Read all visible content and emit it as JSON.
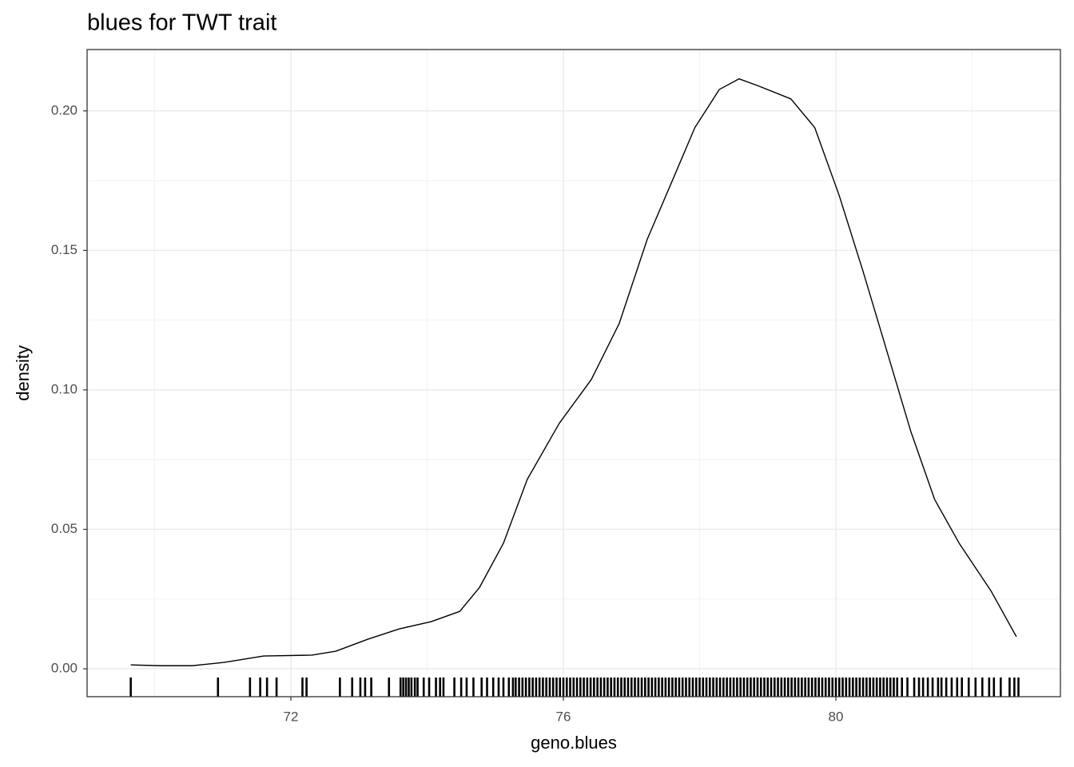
{
  "chart_data": {
    "type": "density",
    "title": "blues for TWT trait",
    "x_label": "geno.blues",
    "y_label": "density",
    "xlim": [
      69.009,
      83.296
    ],
    "ylim": [
      -0.01,
      0.222
    ],
    "xticks": [
      72,
      76,
      80
    ],
    "yticks": [
      {
        "value": 0,
        "label": "0.00"
      },
      {
        "value": 0.05,
        "label": "0.05"
      },
      {
        "value": 0.1,
        "label": "0.10"
      },
      {
        "value": 0.15,
        "label": "0.15"
      },
      {
        "value": 0.2,
        "label": "0.20"
      }
    ],
    "x_minor_grid": [
      70,
      74,
      78,
      82
    ],
    "y_minor_grid": [
      0.025,
      0.075,
      0.125,
      0.175
    ],
    "grid": true,
    "color": "#000000",
    "x": [
      69.65,
      70.08,
      70.55,
      71.02,
      71.6,
      72.31,
      72.66,
      73.13,
      73.59,
      74.06,
      74.48,
      74.77,
      75.12,
      75.47,
      75.94,
      76.41,
      76.82,
      77.23,
      77.58,
      77.93,
      78.29,
      78.58,
      78.87,
      79.34,
      79.69,
      80.05,
      80.4,
      80.75,
      81.1,
      81.45,
      81.81,
      82.28,
      82.65
    ],
    "values": [
      0.0014,
      0.0011,
      0.0011,
      0.0023,
      0.0046,
      0.0049,
      0.0063,
      0.0106,
      0.0143,
      0.0169,
      0.0206,
      0.0292,
      0.045,
      0.0679,
      0.088,
      0.1037,
      0.1238,
      0.1539,
      0.1739,
      0.194,
      0.2077,
      0.2115,
      0.2089,
      0.2043,
      0.194,
      0.1696,
      0.1424,
      0.1138,
      0.0851,
      0.0607,
      0.045,
      0.0278,
      0.0115
    ],
    "rug": [
      69.65,
      70.93,
      71.4,
      71.55,
      71.65,
      71.79,
      72.17,
      72.23,
      72.72,
      72.9,
      73.02,
      73.09,
      73.18,
      73.44,
      73.61,
      73.65,
      73.69,
      73.73,
      73.77,
      73.82,
      73.86,
      73.95,
      74.03,
      74.13,
      74.19,
      74.24,
      74.4,
      74.5,
      74.58,
      74.68,
      74.8,
      74.88,
      74.97,
      75.05,
      75.12,
      75.2,
      75.26,
      75.3,
      75.35,
      75.4,
      75.45,
      75.5,
      75.55,
      75.6,
      75.65,
      75.7,
      75.75,
      75.8,
      75.85,
      75.9,
      75.95,
      76,
      76.05,
      76.1,
      76.15,
      76.2,
      76.25,
      76.3,
      76.35,
      76.4,
      76.45,
      76.5,
      76.55,
      76.6,
      76.65,
      76.7,
      76.75,
      76.8,
      76.85,
      76.9,
      76.95,
      77,
      77.05,
      77.1,
      77.15,
      77.2,
      77.25,
      77.3,
      77.35,
      77.4,
      77.45,
      77.5,
      77.55,
      77.6,
      77.65,
      77.7,
      77.75,
      77.8,
      77.85,
      77.9,
      77.95,
      78,
      78.05,
      78.1,
      78.15,
      78.2,
      78.25,
      78.3,
      78.35,
      78.4,
      78.45,
      78.5,
      78.55,
      78.6,
      78.65,
      78.7,
      78.75,
      78.8,
      78.85,
      78.9,
      78.95,
      79,
      79.05,
      79.1,
      79.15,
      79.2,
      79.25,
      79.3,
      79.35,
      79.4,
      79.45,
      79.5,
      79.55,
      79.6,
      79.65,
      79.7,
      79.75,
      79.8,
      79.85,
      79.9,
      79.95,
      80,
      80.05,
      80.1,
      80.15,
      80.2,
      80.25,
      80.3,
      80.35,
      80.4,
      80.45,
      80.5,
      80.55,
      80.6,
      80.65,
      80.7,
      80.75,
      80.8,
      80.85,
      80.9,
      80.97,
      81.05,
      81.15,
      81.22,
      81.28,
      81.35,
      81.42,
      81.5,
      81.55,
      81.62,
      81.7,
      81.78,
      81.85,
      81.95,
      82.05,
      82.15,
      82.25,
      82.32,
      82.42,
      82.55,
      82.62,
      82.68
    ]
  }
}
